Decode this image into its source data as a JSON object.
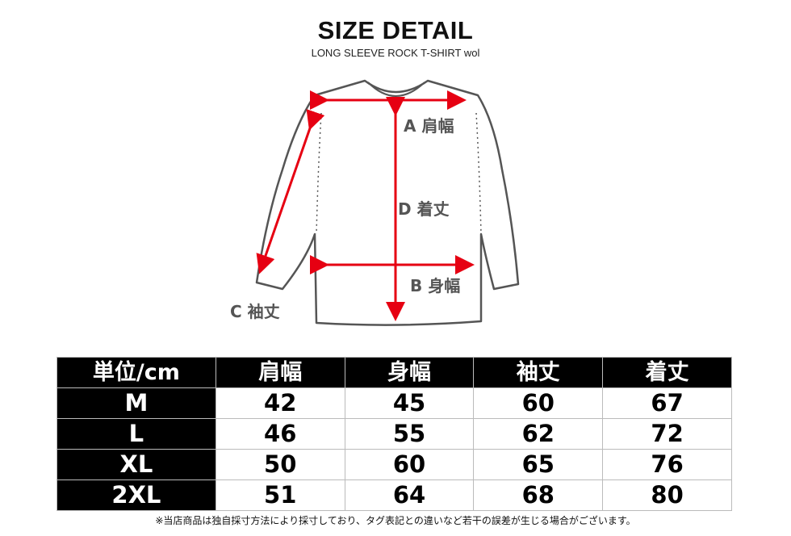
{
  "header": {
    "title": "SIZE DETAIL",
    "subtitle": "LONG SLEEVE ROCK T-SHIRT wol"
  },
  "diagram": {
    "labels": {
      "a": "A 肩幅",
      "b": "B 身幅",
      "c": "C 袖丈",
      "d": "D 着丈"
    },
    "arrow_color": "#e60012",
    "outline_color": "#555555"
  },
  "table": {
    "headers": [
      "単位/cm",
      "肩幅",
      "身幅",
      "袖丈",
      "着丈"
    ],
    "rows": [
      {
        "size": "M",
        "values": [
          "42",
          "45",
          "60",
          "67"
        ]
      },
      {
        "size": "L",
        "values": [
          "46",
          "55",
          "62",
          "72"
        ]
      },
      {
        "size": "XL",
        "values": [
          "50",
          "60",
          "65",
          "76"
        ]
      },
      {
        "size": "2XL",
        "values": [
          "51",
          "64",
          "68",
          "80"
        ]
      }
    ]
  },
  "note": "※当店商品は独自採寸方法により採寸しており、タグ表記との違いなど若干の誤差が生じる場合がございます。"
}
